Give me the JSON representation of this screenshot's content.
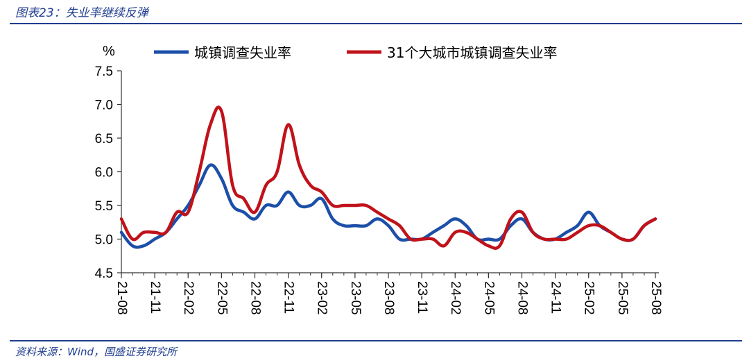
{
  "figure": {
    "title": "图表23：失业率继续反弹",
    "source": "资料来源：Wind，国盛证券研究所"
  },
  "colors": {
    "series_urban": "#1c4fa8",
    "series_31city": "#c0121a",
    "frame": "#1f3d8f"
  },
  "chart_data": {
    "type": "line",
    "title": "",
    "unit": "%",
    "ylim": [
      4.5,
      7.5
    ],
    "yticks": [
      "4.5",
      "5.0",
      "5.5",
      "6.0",
      "6.5",
      "7.0",
      "7.5"
    ],
    "x_tick_labels": [
      "21-08",
      "21-11",
      "22-02",
      "22-05",
      "22-08",
      "22-11",
      "23-02",
      "23-05",
      "23-08",
      "23-11",
      "24-02",
      "24-05",
      "24-08",
      "24-11",
      "25-02",
      "25-05",
      "25-08"
    ],
    "x": [
      "21-08",
      "21-09",
      "21-10",
      "21-11",
      "21-12",
      "22-01",
      "22-02",
      "22-03",
      "22-04",
      "22-05",
      "22-06",
      "22-07",
      "22-08",
      "22-09",
      "22-10",
      "22-11",
      "22-12",
      "23-01",
      "23-02",
      "23-03",
      "23-04",
      "23-05",
      "23-06",
      "23-07",
      "23-08",
      "23-09",
      "23-10",
      "23-11",
      "23-12",
      "24-01",
      "24-02",
      "24-03",
      "24-04",
      "24-05",
      "24-06",
      "24-07",
      "24-08",
      "24-09",
      "24-10",
      "24-11",
      "24-12",
      "25-01",
      "25-02",
      "25-03",
      "25-04",
      "25-05",
      "25-06",
      "25-07",
      "25-08"
    ],
    "grid": false,
    "legend_position": "top",
    "series": [
      {
        "name": "城镇调查失业率",
        "color_key": "series_urban",
        "values": [
          5.1,
          4.9,
          4.9,
          5.0,
          5.1,
          5.3,
          5.5,
          5.8,
          6.1,
          5.9,
          5.5,
          5.4,
          5.3,
          5.5,
          5.5,
          5.7,
          5.5,
          5.5,
          5.6,
          5.3,
          5.2,
          5.2,
          5.2,
          5.3,
          5.2,
          5.0,
          5.0,
          5.0,
          5.1,
          5.2,
          5.3,
          5.2,
          5.0,
          5.0,
          5.0,
          5.2,
          5.3,
          5.1,
          5.0,
          5.0,
          5.1,
          5.2,
          5.4,
          5.2,
          5.1,
          5.0,
          5.0,
          5.2,
          5.3
        ]
      },
      {
        "name": "31个大城市城镇调查失业率",
        "color_key": "series_31city",
        "values": [
          5.3,
          5.0,
          5.1,
          5.1,
          5.1,
          5.4,
          5.4,
          6.0,
          6.7,
          6.9,
          5.8,
          5.6,
          5.4,
          5.8,
          6.0,
          6.7,
          6.1,
          5.8,
          5.7,
          5.5,
          5.5,
          5.5,
          5.5,
          5.4,
          5.3,
          5.2,
          5.0,
          5.0,
          5.0,
          4.9,
          5.1,
          5.1,
          5.0,
          4.9,
          4.9,
          5.3,
          5.4,
          5.1,
          5.0,
          5.0,
          5.0,
          5.1,
          5.2,
          5.2,
          5.1,
          5.0,
          5.0,
          5.2,
          5.3
        ]
      }
    ]
  }
}
